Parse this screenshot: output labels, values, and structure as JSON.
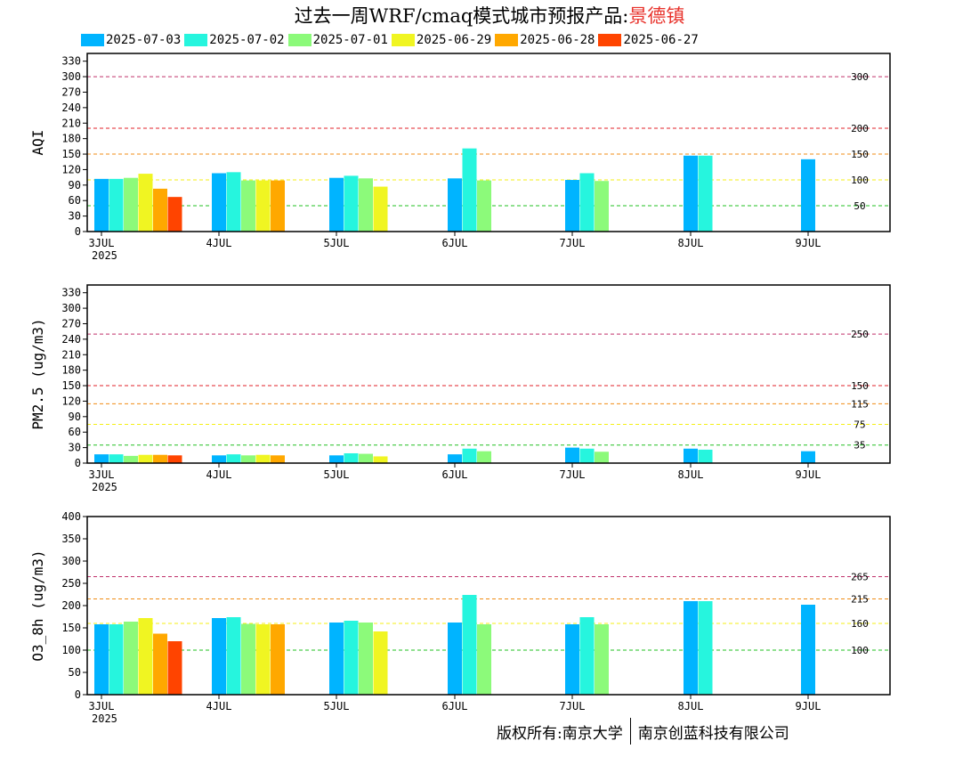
{
  "title": {
    "prefix": "过去一周WRF/cmaq模式城市预报产品:",
    "city": "景德镇"
  },
  "legend": [
    {
      "label": "2025-07-03",
      "color": "#00b4ff"
    },
    {
      "label": "2025-07-02",
      "color": "#26f5de"
    },
    {
      "label": "2025-07-01",
      "color": "#8cfa7a"
    },
    {
      "label": "2025-06-29",
      "color": "#f0f522"
    },
    {
      "label": "2025-06-28",
      "color": "#ffa800"
    },
    {
      "label": "2025-06-27",
      "color": "#ff4400"
    }
  ],
  "x_ticks": [
    "3JUL",
    "4JUL",
    "5JUL",
    "6JUL",
    "7JUL",
    "8JUL",
    "9JUL"
  ],
  "x_year": "2025",
  "footer": {
    "left": "版权所有:南京大学",
    "right": "南京创蓝科技有限公司"
  },
  "chart_data": [
    {
      "type": "bar",
      "ylabel": "AQI",
      "ylim": [
        0,
        345
      ],
      "yticks": [
        0,
        30,
        60,
        90,
        120,
        150,
        180,
        210,
        240,
        270,
        300,
        330
      ],
      "thresholds": [
        {
          "value": 300,
          "label": "300",
          "color": "#c0306a"
        },
        {
          "value": 200,
          "label": "200",
          "color": "#e0202a"
        },
        {
          "value": 150,
          "label": "150",
          "color": "#f08c14"
        },
        {
          "value": 100,
          "label": "100",
          "color": "#f5ef14"
        },
        {
          "value": 50,
          "label": "50",
          "color": "#22c022"
        }
      ],
      "series": [
        {
          "values": [
            [
              0,
              102
            ],
            [
              1,
              113
            ],
            [
              2,
              104
            ],
            [
              3,
              103
            ],
            [
              4,
              100
            ],
            [
              5,
              147
            ],
            [
              6,
              140
            ]
          ]
        },
        {
          "values": [
            [
              0,
              102
            ],
            [
              1,
              115
            ],
            [
              2,
              108
            ],
            [
              3,
              161
            ],
            [
              4,
              113
            ],
            [
              5,
              147
            ]
          ]
        },
        {
          "values": [
            [
              0,
              104
            ],
            [
              1,
              99
            ],
            [
              2,
              103
            ],
            [
              3,
              99
            ],
            [
              4,
              98
            ]
          ]
        },
        {
          "values": [
            [
              0,
              112
            ],
            [
              1,
              99
            ],
            [
              2,
              87
            ]
          ]
        },
        {
          "values": [
            [
              0,
              83
            ],
            [
              1,
              99
            ]
          ]
        },
        {
          "values": [
            [
              0,
              67
            ]
          ]
        }
      ]
    },
    {
      "type": "bar",
      "ylabel": "PM2.5 (ug/m3)",
      "ylim": [
        0,
        345
      ],
      "yticks": [
        0,
        30,
        60,
        90,
        120,
        150,
        180,
        210,
        240,
        270,
        300,
        330
      ],
      "thresholds": [
        {
          "value": 250,
          "label": "250",
          "color": "#c0306a"
        },
        {
          "value": 150,
          "label": "150",
          "color": "#e0202a"
        },
        {
          "value": 115,
          "label": "115",
          "color": "#f08c14"
        },
        {
          "value": 75,
          "label": "75",
          "color": "#f5ef14"
        },
        {
          "value": 35,
          "label": "35",
          "color": "#22c022"
        }
      ],
      "series": [
        {
          "values": [
            [
              0,
              17
            ],
            [
              1,
              15
            ],
            [
              2,
              15
            ],
            [
              3,
              17
            ],
            [
              4,
              30
            ],
            [
              5,
              28
            ],
            [
              6,
              23
            ]
          ]
        },
        {
          "values": [
            [
              0,
              17
            ],
            [
              1,
              17
            ],
            [
              2,
              19
            ],
            [
              3,
              28
            ],
            [
              4,
              28
            ],
            [
              5,
              26
            ]
          ]
        },
        {
          "values": [
            [
              0,
              14
            ],
            [
              1,
              15
            ],
            [
              2,
              18
            ],
            [
              3,
              23
            ],
            [
              4,
              22
            ]
          ]
        },
        {
          "values": [
            [
              0,
              16
            ],
            [
              1,
              16
            ],
            [
              2,
              13
            ]
          ]
        },
        {
          "values": [
            [
              0,
              16
            ],
            [
              1,
              15
            ]
          ]
        },
        {
          "values": [
            [
              0,
              15
            ]
          ]
        }
      ]
    },
    {
      "type": "bar",
      "ylabel": "O3_8h (ug/m3)",
      "ylim": [
        0,
        400
      ],
      "yticks": [
        0,
        50,
        100,
        150,
        200,
        250,
        300,
        350,
        400
      ],
      "thresholds": [
        {
          "value": 265,
          "label": "265",
          "color": "#c0306a"
        },
        {
          "value": 215,
          "label": "215",
          "color": "#f08c14"
        },
        {
          "value": 160,
          "label": "160",
          "color": "#f5ef14"
        },
        {
          "value": 100,
          "label": "100",
          "color": "#22c022"
        }
      ],
      "series": [
        {
          "values": [
            [
              0,
              158
            ],
            [
              1,
              172
            ],
            [
              2,
              162
            ],
            [
              3,
              162
            ],
            [
              4,
              158
            ],
            [
              5,
              210
            ],
            [
              6,
              202
            ]
          ]
        },
        {
          "values": [
            [
              0,
              158
            ],
            [
              1,
              174
            ],
            [
              2,
              166
            ],
            [
              3,
              224
            ],
            [
              4,
              174
            ],
            [
              5,
              210
            ]
          ]
        },
        {
          "values": [
            [
              0,
              164
            ],
            [
              1,
              159
            ],
            [
              2,
              162
            ],
            [
              3,
              158
            ],
            [
              4,
              158
            ]
          ]
        },
        {
          "values": [
            [
              0,
              172
            ],
            [
              1,
              158
            ],
            [
              2,
              142
            ]
          ]
        },
        {
          "values": [
            [
              0,
              137
            ],
            [
              1,
              158
            ]
          ]
        },
        {
          "values": [
            [
              0,
              120
            ]
          ]
        }
      ]
    }
  ]
}
